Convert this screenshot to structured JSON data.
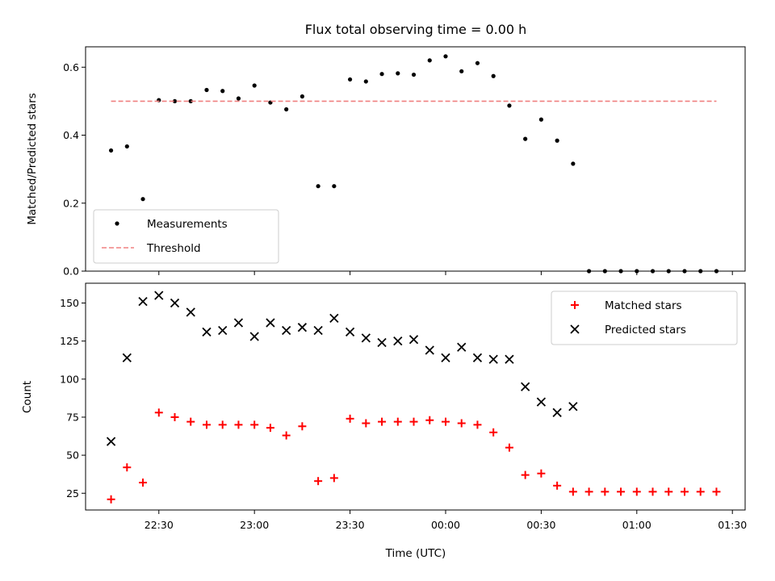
{
  "chart_data": [
    {
      "type": "scatter",
      "title": "Flux total observing time = 0.00 h",
      "xlabel": "",
      "ylabel": "Matched/Predicted stars",
      "ylim": [
        0,
        0.66
      ],
      "yticks": [
        0.0,
        0.2,
        0.4,
        0.6
      ],
      "ytick_labels": [
        "0.0",
        "0.2",
        "0.4",
        "0.6"
      ],
      "legend_position": "bottom-left",
      "series": [
        {
          "name": "Measurements",
          "marker": "dot",
          "color": "#000000",
          "x": [
            "22:15",
            "22:20",
            "22:25",
            "22:30",
            "22:35",
            "22:40",
            "22:45",
            "22:50",
            "22:55",
            "23:00",
            "23:05",
            "23:10",
            "23:15",
            "23:20",
            "23:25",
            "23:30",
            "23:35",
            "23:40",
            "23:45",
            "23:50",
            "23:55",
            "00:00",
            "00:05",
            "00:10",
            "00:15",
            "00:20",
            "00:25",
            "00:30",
            "00:35",
            "00:40",
            "00:45",
            "00:50",
            "00:55",
            "01:00",
            "01:05",
            "01:10",
            "01:15",
            "01:20",
            "01:25"
          ],
          "y": [
            0.355,
            0.367,
            0.212,
            0.503,
            0.5,
            0.5,
            0.533,
            0.53,
            0.508,
            0.546,
            0.496,
            0.476,
            0.514,
            0.25,
            0.25,
            0.564,
            0.558,
            0.58,
            0.582,
            0.578,
            0.62,
            0.632,
            0.588,
            0.612,
            0.574,
            0.487,
            0.389,
            0.446,
            0.384,
            0.316,
            0.0,
            0.0,
            0.0,
            0.0,
            0.0,
            0.0,
            0.0,
            0.0,
            0.0
          ]
        },
        {
          "name": "Threshold",
          "marker": "dashed-line",
          "color": "#f08080",
          "x": [
            "22:15",
            "01:25"
          ],
          "y": [
            0.5,
            0.5
          ]
        }
      ]
    },
    {
      "type": "scatter",
      "title": "",
      "xlabel": "Time (UTC)",
      "ylabel": "Count",
      "ylim": [
        14,
        163
      ],
      "yticks": [
        25,
        50,
        75,
        100,
        125,
        150
      ],
      "ytick_labels": [
        "25",
        "50",
        "75",
        "100",
        "125",
        "150"
      ],
      "xticks": [
        "22:30",
        "23:00",
        "23:30",
        "00:00",
        "00:30",
        "01:00",
        "01:30"
      ],
      "legend_position": "top-right",
      "series": [
        {
          "name": "Matched stars",
          "marker": "plus",
          "color": "#ff0000",
          "x": [
            "22:15",
            "22:20",
            "22:25",
            "22:30",
            "22:35",
            "22:40",
            "22:45",
            "22:50",
            "22:55",
            "23:00",
            "23:05",
            "23:10",
            "23:15",
            "23:20",
            "23:25",
            "23:30",
            "23:35",
            "23:40",
            "23:45",
            "23:50",
            "23:55",
            "00:00",
            "00:05",
            "00:10",
            "00:15",
            "00:20",
            "00:25",
            "00:30",
            "00:35",
            "00:40",
            "00:45",
            "00:50",
            "00:55",
            "01:00",
            "01:05",
            "01:10",
            "01:15",
            "01:20",
            "01:25"
          ],
          "y": [
            21,
            42,
            32,
            78,
            75,
            72,
            70,
            70,
            70,
            70,
            68,
            63,
            69,
            33,
            35,
            74,
            71,
            72,
            72,
            72,
            73,
            72,
            71,
            70,
            65,
            55,
            37,
            38,
            30,
            26,
            26,
            26,
            26,
            26,
            26,
            26,
            26,
            26,
            26
          ]
        },
        {
          "name": "Predicted stars",
          "marker": "x",
          "color": "#000000",
          "x": [
            "22:15",
            "22:20",
            "22:25",
            "22:30",
            "22:35",
            "22:40",
            "22:45",
            "22:50",
            "22:55",
            "23:00",
            "23:05",
            "23:10",
            "23:15",
            "23:20",
            "23:25",
            "23:30",
            "23:35",
            "23:40",
            "23:45",
            "23:50",
            "23:55",
            "00:00",
            "00:05",
            "00:10",
            "00:15",
            "00:20",
            "00:25",
            "00:30",
            "00:35",
            "00:40"
          ],
          "y": [
            59,
            114,
            151,
            155,
            150,
            144,
            131,
            132,
            137,
            128,
            137,
            132,
            134,
            132,
            140,
            131,
            127,
            124,
            125,
            126,
            119,
            114,
            121,
            114,
            113,
            113,
            95,
            85,
            78,
            82
          ]
        }
      ]
    }
  ]
}
